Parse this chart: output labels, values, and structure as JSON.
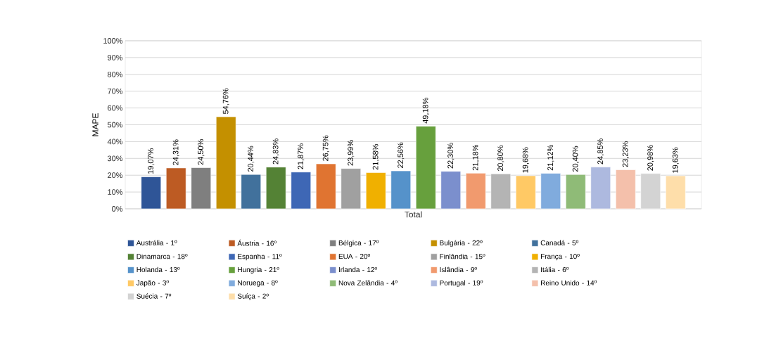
{
  "chart_data": {
    "type": "bar",
    "ylabel": "MAPE",
    "categories": [
      "Total"
    ],
    "ylim": [
      0,
      100
    ],
    "yticks": [
      {
        "value": 0,
        "label": "0%"
      },
      {
        "value": 10,
        "label": "10%"
      },
      {
        "value": 20,
        "label": "20%"
      },
      {
        "value": 30,
        "label": "30%"
      },
      {
        "value": 40,
        "label": "40%"
      },
      {
        "value": 50,
        "label": "50%"
      },
      {
        "value": 60,
        "label": "60%"
      },
      {
        "value": 70,
        "label": "70%"
      },
      {
        "value": 80,
        "label": "80%"
      },
      {
        "value": 90,
        "label": "90%"
      },
      {
        "value": 100,
        "label": "100%"
      }
    ],
    "grid": "y",
    "legend": "bottom",
    "series": [
      {
        "name": "Austrália - 1º",
        "color": "#2f5597",
        "values": [
          19.07
        ],
        "value_labels": [
          "19,07%"
        ]
      },
      {
        "name": "Áustria - 16º",
        "color": "#bd5b23",
        "values": [
          24.31
        ],
        "value_labels": [
          "24,31%"
        ]
      },
      {
        "name": "Bélgica - 17º",
        "color": "#7f7f7f",
        "values": [
          24.5
        ],
        "value_labels": [
          "24,50%"
        ]
      },
      {
        "name": "Bulgária - 22º",
        "color": "#c49000",
        "values": [
          54.76
        ],
        "value_labels": [
          "54,76%"
        ]
      },
      {
        "name": "Canadá - 5º",
        "color": "#41719c",
        "values": [
          20.44
        ],
        "value_labels": [
          "20,44%"
        ]
      },
      {
        "name": "Dinamarca - 18º",
        "color": "#548235",
        "values": [
          24.83
        ],
        "value_labels": [
          "24,83%"
        ]
      },
      {
        "name": "Espanha - 11º",
        "color": "#3e67b5",
        "values": [
          21.87
        ],
        "value_labels": [
          "21,87%"
        ]
      },
      {
        "name": "EUA - 20º",
        "color": "#e07431",
        "values": [
          26.75
        ],
        "value_labels": [
          "26,75%"
        ]
      },
      {
        "name": "Finlândia - 15º",
        "color": "#a0a0a0",
        "values": [
          23.99
        ],
        "value_labels": [
          "23,99%"
        ]
      },
      {
        "name": "França - 10º",
        "color": "#f0b000",
        "values": [
          21.58
        ],
        "value_labels": [
          "21,58%"
        ]
      },
      {
        "name": "Holanda - 13º",
        "color": "#5592ca",
        "values": [
          22.56
        ],
        "value_labels": [
          "22,56%"
        ]
      },
      {
        "name": "Hungria - 21º",
        "color": "#67a03d",
        "values": [
          49.18
        ],
        "value_labels": [
          "49,18%"
        ]
      },
      {
        "name": "Irlanda - 12º",
        "color": "#7b8fcd",
        "values": [
          22.3
        ],
        "value_labels": [
          "22,30%"
        ]
      },
      {
        "name": "Islândia - 9º",
        "color": "#f19a6e",
        "values": [
          21.18
        ],
        "value_labels": [
          "21,18%"
        ]
      },
      {
        "name": "Itália - 6º",
        "color": "#b4b4b4",
        "values": [
          20.8
        ],
        "value_labels": [
          "20,80%"
        ]
      },
      {
        "name": "Japão - 3º",
        "color": "#ffc965",
        "values": [
          19.68
        ],
        "value_labels": [
          "19,68%"
        ]
      },
      {
        "name": "Noruega - 8º",
        "color": "#80abdd",
        "values": [
          21.12
        ],
        "value_labels": [
          "21,12%"
        ]
      },
      {
        "name": "Nova Zelândia - 4º",
        "color": "#8fbb77",
        "values": [
          20.4
        ],
        "value_labels": [
          "20,40%"
        ]
      },
      {
        "name": "Portugal - 19º",
        "color": "#adb9df",
        "values": [
          24.85
        ],
        "value_labels": [
          "24,85%"
        ]
      },
      {
        "name": "Reino Unido - 14º",
        "color": "#f4c0ab",
        "values": [
          23.23
        ],
        "value_labels": [
          "23,23%"
        ]
      },
      {
        "name": "Suécia - 7º",
        "color": "#d3d3d3",
        "values": [
          20.98
        ],
        "value_labels": [
          "20,98%"
        ]
      },
      {
        "name": "Suíça - 2º",
        "color": "#fedeaa",
        "values": [
          19.63
        ],
        "value_labels": [
          "19,63%"
        ]
      }
    ]
  }
}
